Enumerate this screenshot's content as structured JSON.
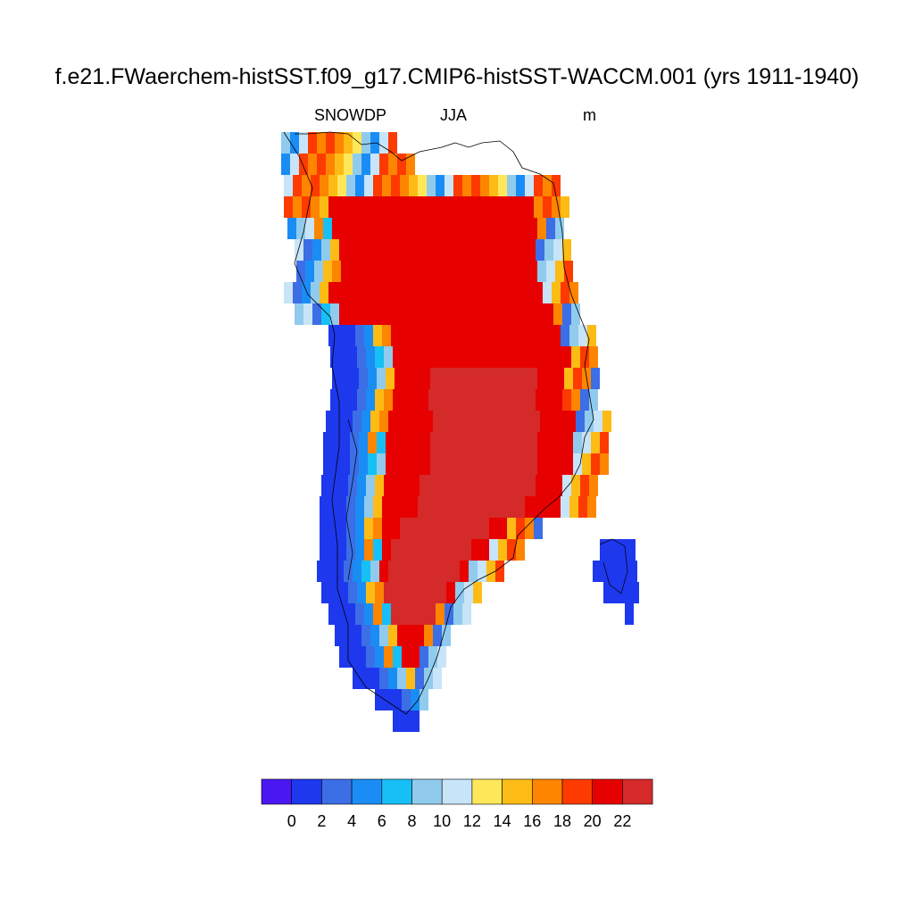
{
  "title": "f.e21.FWaerchem-histSST.f09_g17.CMIP6-histSST-WACCM.001 (yrs 1911-1940)",
  "subtitle_left": "SNOWDP",
  "subtitle_center": "JJA",
  "subtitle_right": "m",
  "colorbar": {
    "colors": [
      "#4b17f2",
      "#1e38ee",
      "#3c6ee6",
      "#1a8df5",
      "#16bff5",
      "#90cbee",
      "#c8e4f8",
      "#fee85a",
      "#fdbb15",
      "#fd8500",
      "#fd3a00",
      "#e60000",
      "#d42a2a"
    ],
    "labels": [
      "0",
      "2",
      "4",
      "6",
      "8",
      "10",
      "12",
      "14",
      "16",
      "18",
      "20",
      "22"
    ]
  },
  "map_colors": {
    "deep": "#d42a2a",
    "interior": "#e60000",
    "edge_red": "#fd3a00",
    "orange": "#fd8500",
    "amber": "#fdbb15",
    "yellow": "#fee85a",
    "pale": "#c8e4f8",
    "lightblue": "#90cbee",
    "cyan": "#16bff5",
    "blue6": "#1a8df5",
    "blue4": "#3c6ee6",
    "blue2": "#1e38ee",
    "coast": "#000000"
  }
}
